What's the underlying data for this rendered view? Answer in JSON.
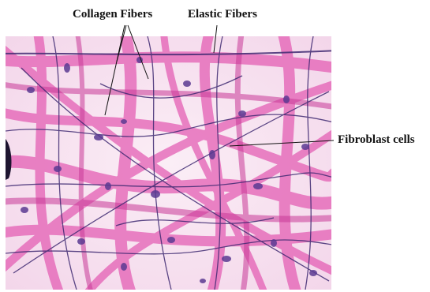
{
  "labels": {
    "collagen": "Collagen Fibers",
    "elastic": "Elastic Fibers",
    "fibroblast": "Fibroblast cells"
  },
  "colors": {
    "background": "#f7e7f1",
    "collagen": "#e45fb4",
    "elastic": "#3f2a72",
    "nucleus": "#5b3a92",
    "leader": "#111111"
  }
}
